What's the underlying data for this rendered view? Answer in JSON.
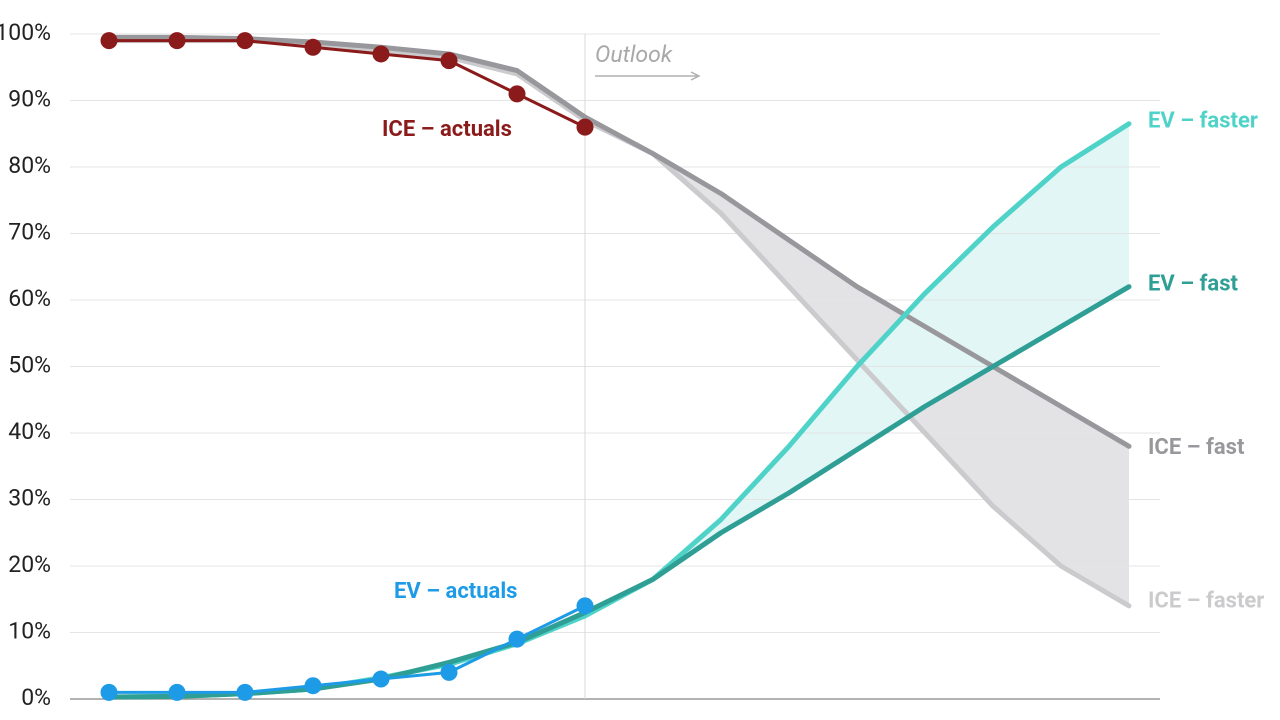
{
  "chart_data": {
    "type": "line",
    "categories": [
      null,
      null,
      null,
      null,
      null,
      null,
      null,
      null,
      null,
      null,
      null,
      null,
      null,
      null,
      null,
      null
    ],
    "annotation": "Outlook",
    "ylim": [
      0,
      100
    ],
    "yticks": [
      {
        "value": 0,
        "label": "0%"
      },
      {
        "value": 10,
        "label": "10%"
      },
      {
        "value": 20,
        "label": "20%"
      },
      {
        "value": 30,
        "label": "30%"
      },
      {
        "value": 40,
        "label": "40%"
      },
      {
        "value": 50,
        "label": "50%"
      },
      {
        "value": 60,
        "label": "60%"
      },
      {
        "value": 70,
        "label": "70%"
      },
      {
        "value": 80,
        "label": "80%"
      },
      {
        "value": 90,
        "label": "90%"
      },
      {
        "value": 100,
        "label": "100%"
      }
    ],
    "grid": true,
    "series": [
      {
        "name": "ICE – faster",
        "color": "#cbcbcd",
        "values": [
          99,
          99,
          99,
          98.5,
          97.5,
          96.5,
          94,
          87,
          82,
          73,
          62,
          51,
          40,
          29,
          20,
          14
        ]
      },
      {
        "name": "ICE – fast",
        "color": "#98989c",
        "values": [
          99.5,
          99.5,
          99.3,
          98.8,
          98,
          97,
          94.5,
          87.5,
          82,
          76,
          69,
          62,
          56,
          50,
          44,
          38
        ]
      },
      {
        "name": "EV – faster",
        "color": "#4fd3c8",
        "values": [
          0.3,
          0.4,
          0.8,
          1.5,
          3.2,
          5.2,
          8.3,
          12.5,
          18,
          27,
          38,
          50,
          61,
          71,
          80,
          86.5
        ]
      },
      {
        "name": "EV – fast",
        "color": "#2f9f96",
        "values": [
          0.3,
          0.4,
          0.8,
          1.5,
          3,
          5.5,
          8.5,
          13,
          18,
          25,
          31,
          37.5,
          44,
          50,
          56,
          62
        ]
      },
      {
        "name": "ICE – actuals",
        "color": "#8b1a1a",
        "values": [
          99,
          99,
          99,
          98,
          97,
          96,
          91,
          86,
          null,
          null,
          null,
          null,
          null,
          null,
          null,
          null
        ]
      },
      {
        "name": "EV – actuals",
        "color": "#1e9be6",
        "values": [
          1,
          1,
          1,
          2,
          3,
          4,
          9,
          14,
          null,
          null,
          null,
          null,
          null,
          null,
          null,
          null
        ]
      }
    ]
  }
}
